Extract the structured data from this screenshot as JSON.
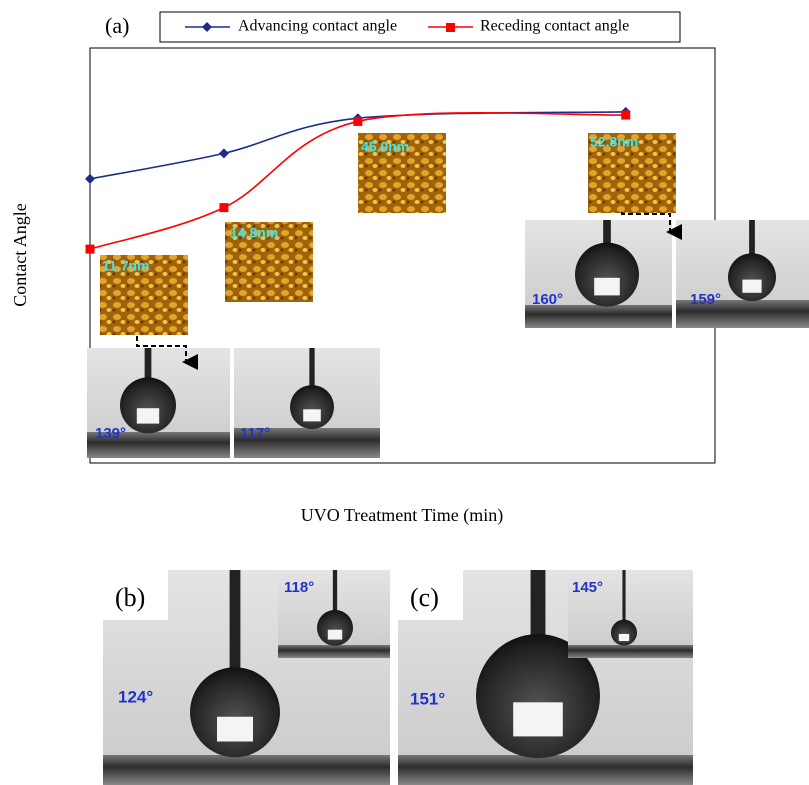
{
  "chart_data": {
    "type": "line",
    "panel_label": "(a)",
    "x_label": "UVO Treatment Time (min)",
    "y_label": "Contact Angle",
    "x": [
      0,
      15,
      30,
      60
    ],
    "series": [
      {
        "name": "Advancing contact angle",
        "color": "#1f2d8a",
        "marker": "diamond",
        "values": [
          139,
          147,
          158,
          160
        ]
      },
      {
        "name": "Receding contact angle",
        "color": "#ff0000",
        "marker": "square",
        "values": [
          117,
          130,
          157,
          159
        ]
      }
    ],
    "xlim": [
      0,
      70
    ],
    "xticks": [
      0,
      10,
      20,
      30,
      40,
      50,
      60,
      70
    ],
    "ylim": [
      50,
      180
    ],
    "yticks": [
      50,
      60,
      70,
      80,
      90,
      100,
      110,
      120,
      130,
      140,
      150,
      160,
      170,
      180
    ],
    "grid": true,
    "legend": "top",
    "afm_labels": [
      "11.7nm",
      "14.8nm",
      "45.0nm",
      "52.8nm"
    ],
    "droplet_labels": [
      "139°",
      "117°",
      "160°",
      "159°"
    ]
  },
  "panels": [
    {
      "label": "(b)",
      "angles": [
        "124°",
        "118°"
      ]
    },
    {
      "label": "(c)",
      "angles": [
        "151°",
        "145°"
      ]
    }
  ]
}
